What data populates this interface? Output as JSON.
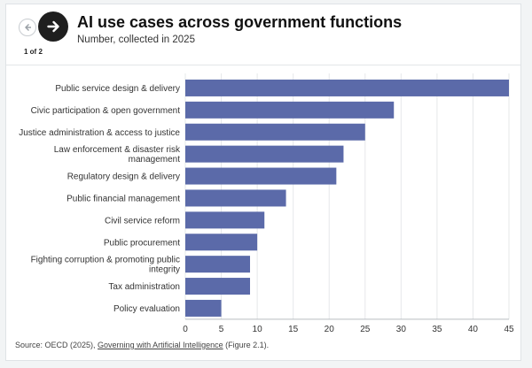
{
  "header": {
    "title": "AI use cases across government functions",
    "subtitle": "Number, collected in 2025",
    "pager": "1 of 2"
  },
  "nav": {
    "prev_icon": "arrow-left-icon",
    "next_icon": "arrow-right-icon"
  },
  "source": {
    "prefix": "Source: OECD (2025), ",
    "link_text": "Governing with Artificial Intelligence",
    "suffix": " (Figure 2.1)."
  },
  "colors": {
    "bar": "#5b6aa9",
    "grid": "#e6e8ea",
    "axis_text": "#333333"
  },
  "chart_data": {
    "type": "bar",
    "orientation": "horizontal",
    "categories": [
      "Public service design & delivery",
      "Civic participation & open government",
      "Justice administration & access to justice",
      "Law enforcement & disaster risk management",
      "Regulatory design & delivery",
      "Public financial management",
      "Civil service reform",
      "Public procurement",
      "Fighting corruption & promoting public integrity",
      "Tax administration",
      "Policy evaluation"
    ],
    "category_lines": [
      [
        "Public service design & delivery"
      ],
      [
        "Civic participation & open government"
      ],
      [
        "Justice administration & access to justice"
      ],
      [
        "Law enforcement & disaster risk",
        "management"
      ],
      [
        "Regulatory design & delivery"
      ],
      [
        "Public financial management"
      ],
      [
        "Civil service reform"
      ],
      [
        "Public procurement"
      ],
      [
        "Fighting corruption & promoting public",
        "integrity"
      ],
      [
        "Tax administration"
      ],
      [
        "Policy evaluation"
      ]
    ],
    "values": [
      45,
      29,
      25,
      22,
      21,
      14,
      11,
      10,
      9,
      9,
      5
    ],
    "xlim": [
      0,
      45
    ],
    "xticks": [
      0,
      5,
      10,
      15,
      20,
      25,
      30,
      35,
      40,
      45
    ],
    "title": "AI use cases across government functions",
    "subtitle": "Number, collected in 2025",
    "xlabel": "",
    "ylabel": "",
    "grid": "vertical",
    "legend": "none"
  }
}
